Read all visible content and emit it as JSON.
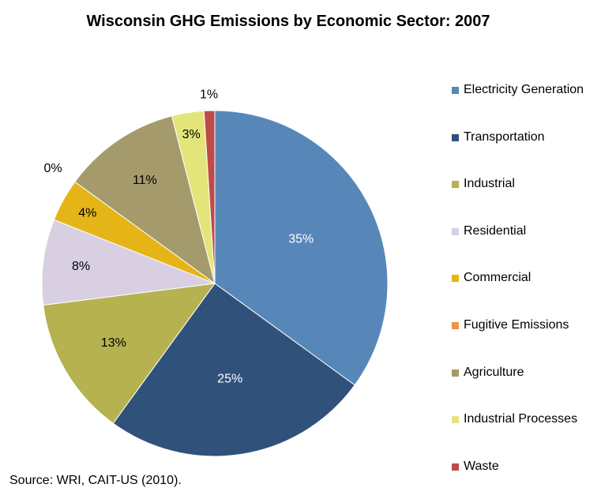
{
  "chart_data": {
    "type": "pie",
    "title": "Wisconsin GHG Emissions by Economic Sector: 2007",
    "legend_position": "right",
    "slices": [
      {
        "name": "Electricity Generation",
        "value": 35,
        "label": "35%",
        "color": "#5787B9"
      },
      {
        "name": "Transportation",
        "value": 25,
        "label": "25%",
        "color": "#30527A"
      },
      {
        "name": "Industrial",
        "value": 13,
        "label": "13%",
        "color": "#B5B24F"
      },
      {
        "name": "Residential",
        "value": 8,
        "label": "8%",
        "color": "#D8CFE3"
      },
      {
        "name": "Commercial",
        "value": 4,
        "label": "4%",
        "color": "#E5B417"
      },
      {
        "name": "Fugitive Emissions",
        "value": 0,
        "label": "0%",
        "color": "#E8954E"
      },
      {
        "name": "Agriculture",
        "value": 11,
        "label": "11%",
        "color": "#A59A6B"
      },
      {
        "name": "Industrial Processes",
        "value": 3,
        "label": "3%",
        "color": "#E3E57A"
      },
      {
        "name": "Waste",
        "value": 1,
        "label": "1%",
        "color": "#BE4B48"
      }
    ]
  },
  "source": "Source: WRI, CAIT-US (2010)."
}
